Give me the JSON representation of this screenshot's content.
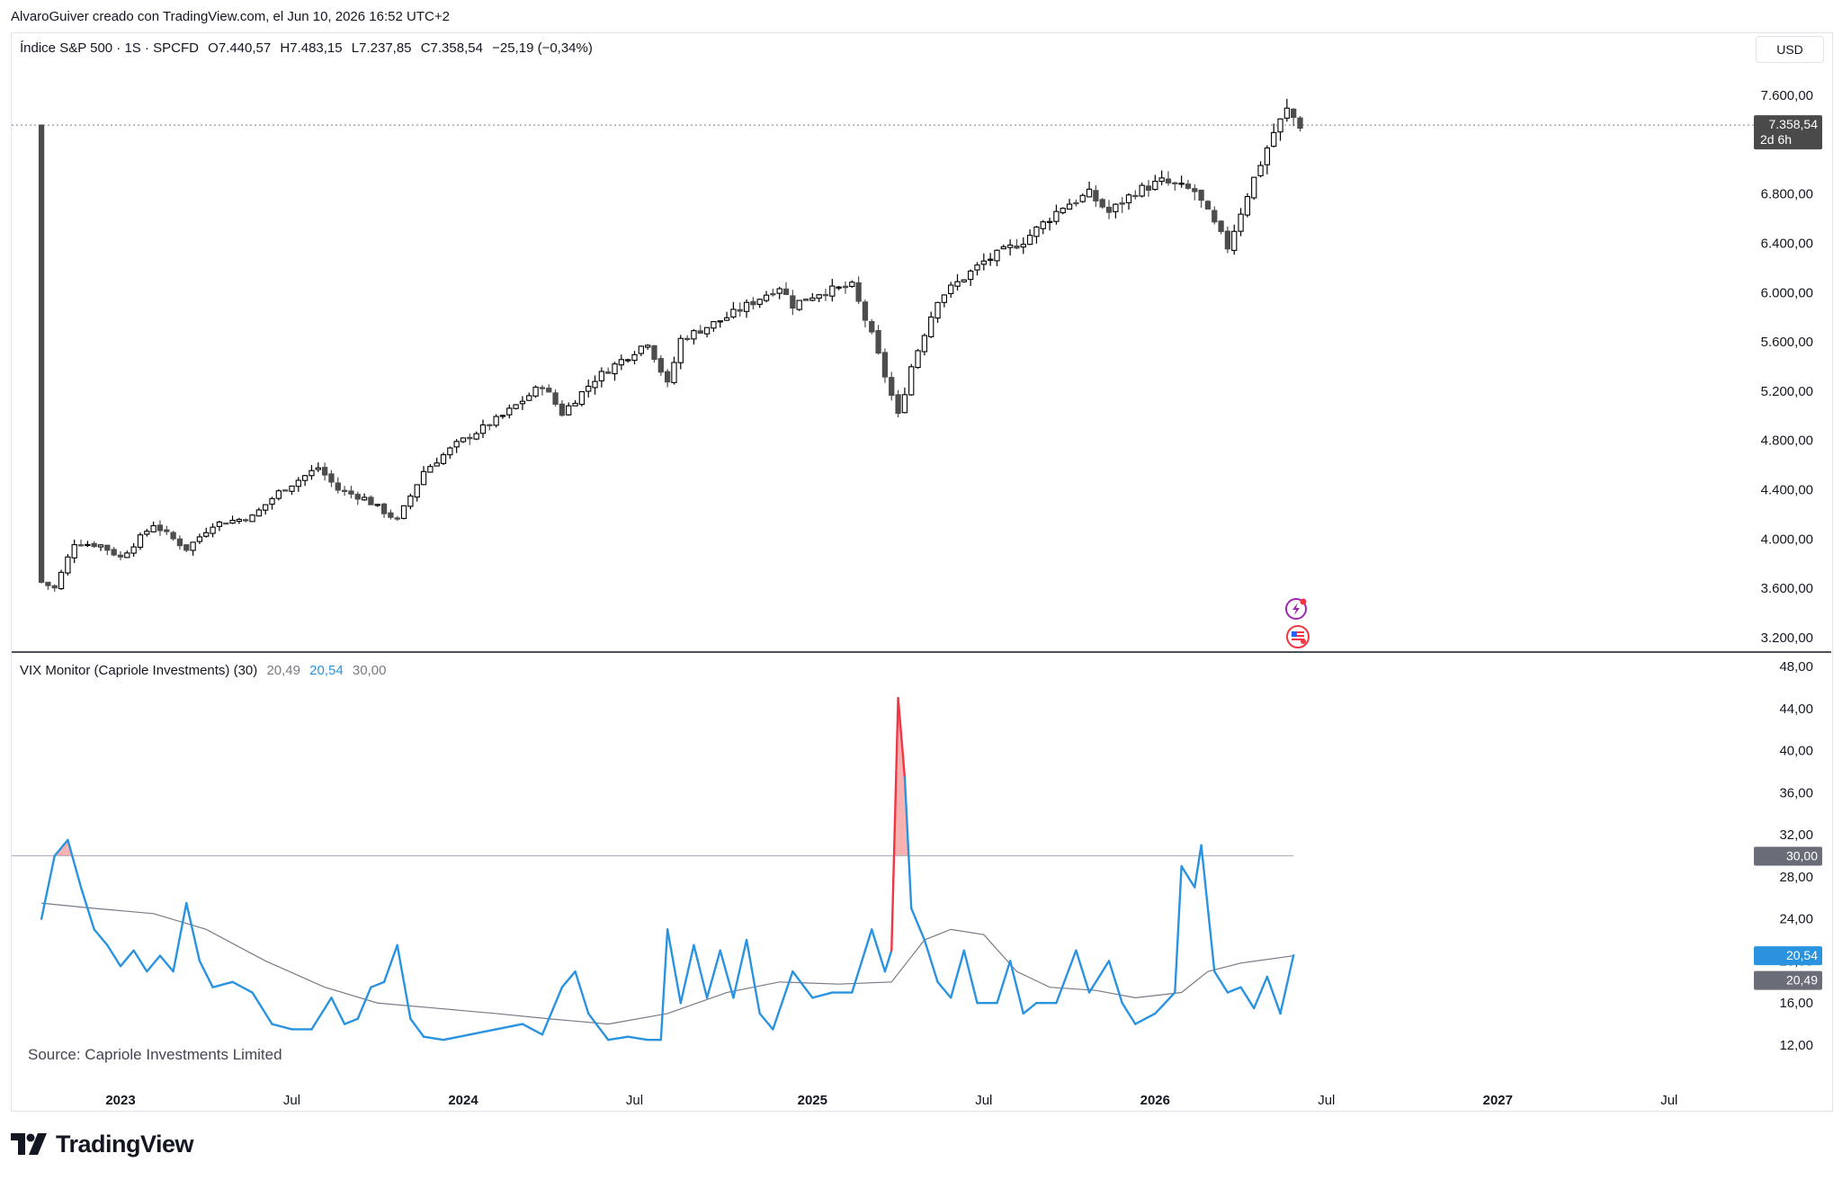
{
  "header": {
    "credit": "AlvaroGuiver creado con TradingView.com, el Jun 10, 2026 16:52 UTC+2",
    "currency": "USD"
  },
  "main_legend": {
    "symbol": "Índice S&P 500 · 1S · SPCFD",
    "open": "O7.440,57",
    "high": "H7.483,15",
    "low": "L7.237,85",
    "close": "C7.358,54",
    "change": "−25,19 (−0,34%)"
  },
  "indicator_legend": {
    "name": "VIX Monitor (Capriole Investments) (30)",
    "v1": "20,49",
    "v2": "20,54",
    "v3": "30,00"
  },
  "source_note": "Source: Capriole Investments Limited",
  "brand": "TradingView",
  "icons": [
    "lightning-icon",
    "us-flag-icon",
    "tradingview-logo-icon"
  ],
  "colors": {
    "candle_up": "#000000",
    "candle_down": "#4d4d4d",
    "vix_line": "#2a93e0",
    "vix_ma": "#787b86",
    "spike_fill": "#f7a8a8",
    "spike_line": "#f23645",
    "threshold": "#b2b5be"
  },
  "chart_data": [
    {
      "type": "candlestick",
      "title": "",
      "interval": "1 week",
      "price_axis_labels": [
        "7.600,00",
        "6.800,00",
        "6.400,00",
        "6.000,00",
        "5.600,00",
        "5.200,00",
        "4.800,00",
        "4.400,00",
        "4.000,00",
        "3.600,00",
        "3.200,00"
      ],
      "price_axis_values": [
        7600,
        6800,
        6400,
        6000,
        5600,
        5200,
        4800,
        4400,
        4000,
        3600,
        3200
      ],
      "last_price_label": "7.358,54",
      "last_price_value": 7358.54,
      "countdown_label": "2d 6h",
      "x_axis_labels": [
        "2023",
        "Jul",
        "2024",
        "Jul",
        "2025",
        "Jul",
        "2026",
        "Jul",
        "2027",
        "Jul"
      ],
      "ylim": [
        3100,
        7800
      ],
      "anchors": [
        [
          "2022-10-10",
          3650
        ],
        [
          "2022-10-24",
          3600
        ],
        [
          "2022-11-14",
          3970
        ],
        [
          "2022-12-12",
          3950
        ],
        [
          "2023-01-02",
          3850
        ],
        [
          "2023-02-06",
          4120
        ],
        [
          "2023-03-13",
          3920
        ],
        [
          "2023-04-10",
          4120
        ],
        [
          "2023-05-22",
          4180
        ],
        [
          "2023-06-19",
          4380
        ],
        [
          "2023-07-31",
          4580
        ],
        [
          "2023-08-21",
          4400
        ],
        [
          "2023-09-18",
          4330
        ],
        [
          "2023-10-23",
          4150
        ],
        [
          "2023-11-20",
          4550
        ],
        [
          "2023-12-25",
          4770
        ],
        [
          "2024-02-12",
          5000
        ],
        [
          "2024-03-25",
          5250
        ],
        [
          "2024-04-15",
          5020
        ],
        [
          "2024-05-20",
          5300
        ],
        [
          "2024-07-15",
          5600
        ],
        [
          "2024-08-05",
          5250
        ],
        [
          "2024-08-19",
          5620
        ],
        [
          "2024-10-07",
          5800
        ],
        [
          "2024-12-02",
          6050
        ],
        [
          "2024-12-16",
          5900
        ],
        [
          "2025-01-13",
          6000
        ],
        [
          "2025-02-17",
          6050
        ],
        [
          "2025-03-10",
          5650
        ],
        [
          "2025-04-07",
          5000
        ],
        [
          "2025-04-21",
          5400
        ],
        [
          "2025-05-19",
          5950
        ],
        [
          "2025-07-07",
          6250
        ],
        [
          "2025-08-18",
          6420
        ],
        [
          "2025-09-29",
          6700
        ],
        [
          "2025-10-27",
          6800
        ],
        [
          "2025-11-17",
          6650
        ],
        [
          "2025-12-15",
          6820
        ],
        [
          "2026-01-12",
          6900
        ],
        [
          "2026-02-16",
          6820
        ],
        [
          "2026-03-09",
          6550
        ],
        [
          "2026-03-23",
          6370
        ],
        [
          "2026-04-13",
          6800
        ],
        [
          "2026-05-11",
          7300
        ],
        [
          "2026-05-25",
          7480
        ],
        [
          "2026-06-08",
          7358
        ]
      ]
    },
    {
      "type": "line",
      "title": "",
      "y_axis_labels": [
        "48,00",
        "44,00",
        "40,00",
        "36,00",
        "32,00",
        "28,00",
        "24,00",
        "20,00",
        "16,00",
        "12,00"
      ],
      "y_axis_values": [
        48,
        44,
        40,
        36,
        32,
        28,
        24,
        20,
        16,
        12
      ],
      "threshold": 30,
      "threshold_label": "30,00",
      "vix_last_label": "20,54",
      "ma_last_label": "20,49",
      "ylim": [
        10.5,
        50
      ],
      "series": [
        {
          "role": "vix",
          "points": [
            [
              "2022-10-10",
              24
            ],
            [
              "2022-10-24",
              30
            ],
            [
              "2022-11-07",
              31.5
            ],
            [
              "2022-11-21",
              27
            ],
            [
              "2022-12-05",
              23
            ],
            [
              "2022-12-19",
              21.5
            ],
            [
              "2023-01-02",
              19.5
            ],
            [
              "2023-01-16",
              21
            ],
            [
              "2023-01-30",
              19
            ],
            [
              "2023-02-13",
              20.5
            ],
            [
              "2023-02-27",
              19
            ],
            [
              "2023-03-13",
              25.5
            ],
            [
              "2023-03-27",
              20
            ],
            [
              "2023-04-10",
              17.5
            ],
            [
              "2023-05-01",
              18
            ],
            [
              "2023-05-22",
              17
            ],
            [
              "2023-06-12",
              14
            ],
            [
              "2023-07-03",
              13.5
            ],
            [
              "2023-07-24",
              13.5
            ],
            [
              "2023-08-14",
              16.5
            ],
            [
              "2023-08-28",
              14
            ],
            [
              "2023-09-11",
              14.5
            ],
            [
              "2023-09-25",
              17.5
            ],
            [
              "2023-10-09",
              18
            ],
            [
              "2023-10-23",
              21.5
            ],
            [
              "2023-11-06",
              14.5
            ],
            [
              "2023-11-20",
              12.8
            ],
            [
              "2023-12-11",
              12.5
            ],
            [
              "2024-01-08",
              13
            ],
            [
              "2024-02-05",
              13.5
            ],
            [
              "2024-03-04",
              14
            ],
            [
              "2024-03-25",
              13
            ],
            [
              "2024-04-15",
              17.5
            ],
            [
              "2024-04-29",
              19
            ],
            [
              "2024-05-13",
              15
            ],
            [
              "2024-06-03",
              12.5
            ],
            [
              "2024-06-24",
              12.8
            ],
            [
              "2024-07-15",
              12.5
            ],
            [
              "2024-07-29",
              12.5
            ],
            [
              "2024-08-05",
              23
            ],
            [
              "2024-08-19",
              16
            ],
            [
              "2024-09-02",
              21.5
            ],
            [
              "2024-09-16",
              16.5
            ],
            [
              "2024-09-30",
              21
            ],
            [
              "2024-10-14",
              16.5
            ],
            [
              "2024-10-28",
              22
            ],
            [
              "2024-11-11",
              15
            ],
            [
              "2024-11-25",
              13.5
            ],
            [
              "2024-12-16",
              19
            ],
            [
              "2025-01-06",
              16.5
            ],
            [
              "2025-01-27",
              17
            ],
            [
              "2025-02-17",
              17
            ],
            [
              "2025-03-10",
              23
            ],
            [
              "2025-03-24",
              19
            ],
            [
              "2025-03-31",
              21
            ],
            [
              "2025-04-07",
              45
            ],
            [
              "2025-04-14",
              37.5
            ],
            [
              "2025-04-21",
              25
            ],
            [
              "2025-05-05",
              22
            ],
            [
              "2025-05-19",
              18
            ],
            [
              "2025-06-02",
              16.5
            ],
            [
              "2025-06-16",
              21
            ],
            [
              "2025-06-30",
              16
            ],
            [
              "2025-07-21",
              16
            ],
            [
              "2025-08-04",
              20
            ],
            [
              "2025-08-18",
              15
            ],
            [
              "2025-09-01",
              16
            ],
            [
              "2025-09-22",
              16
            ],
            [
              "2025-10-13",
              21
            ],
            [
              "2025-10-27",
              17
            ],
            [
              "2025-11-17",
              20
            ],
            [
              "2025-12-01",
              16
            ],
            [
              "2025-12-15",
              14
            ],
            [
              "2026-01-05",
              15
            ],
            [
              "2026-01-26",
              17
            ],
            [
              "2026-02-02",
              29
            ],
            [
              "2026-02-16",
              27
            ],
            [
              "2026-02-23",
              31
            ],
            [
              "2026-03-09",
              19
            ],
            [
              "2026-03-23",
              17
            ],
            [
              "2026-04-06",
              17.5
            ],
            [
              "2026-04-20",
              15.5
            ],
            [
              "2026-05-04",
              18.5
            ],
            [
              "2026-05-18",
              15
            ],
            [
              "2026-06-01",
              20.54
            ]
          ]
        },
        {
          "role": "ma",
          "points": [
            [
              "2022-10-10",
              25.5
            ],
            [
              "2022-12-05",
              25
            ],
            [
              "2023-02-06",
              24.5
            ],
            [
              "2023-04-03",
              23
            ],
            [
              "2023-06-05",
              20
            ],
            [
              "2023-08-07",
              17.5
            ],
            [
              "2023-10-02",
              16
            ],
            [
              "2023-12-04",
              15.5
            ],
            [
              "2024-02-05",
              15
            ],
            [
              "2024-04-01",
              14.5
            ],
            [
              "2024-06-03",
              14
            ],
            [
              "2024-08-05",
              15
            ],
            [
              "2024-10-07",
              17
            ],
            [
              "2024-12-02",
              18
            ],
            [
              "2025-02-03",
              17.8
            ],
            [
              "2025-03-31",
              18
            ],
            [
              "2025-05-05",
              22
            ],
            [
              "2025-06-02",
              23
            ],
            [
              "2025-07-07",
              22.5
            ],
            [
              "2025-08-11",
              19
            ],
            [
              "2025-09-15",
              17.5
            ],
            [
              "2025-11-03",
              17.2
            ],
            [
              "2025-12-15",
              16.5
            ],
            [
              "2026-02-02",
              17
            ],
            [
              "2026-03-02",
              19
            ],
            [
              "2026-04-06",
              19.8
            ],
            [
              "2026-06-01",
              20.49
            ]
          ]
        }
      ]
    }
  ]
}
